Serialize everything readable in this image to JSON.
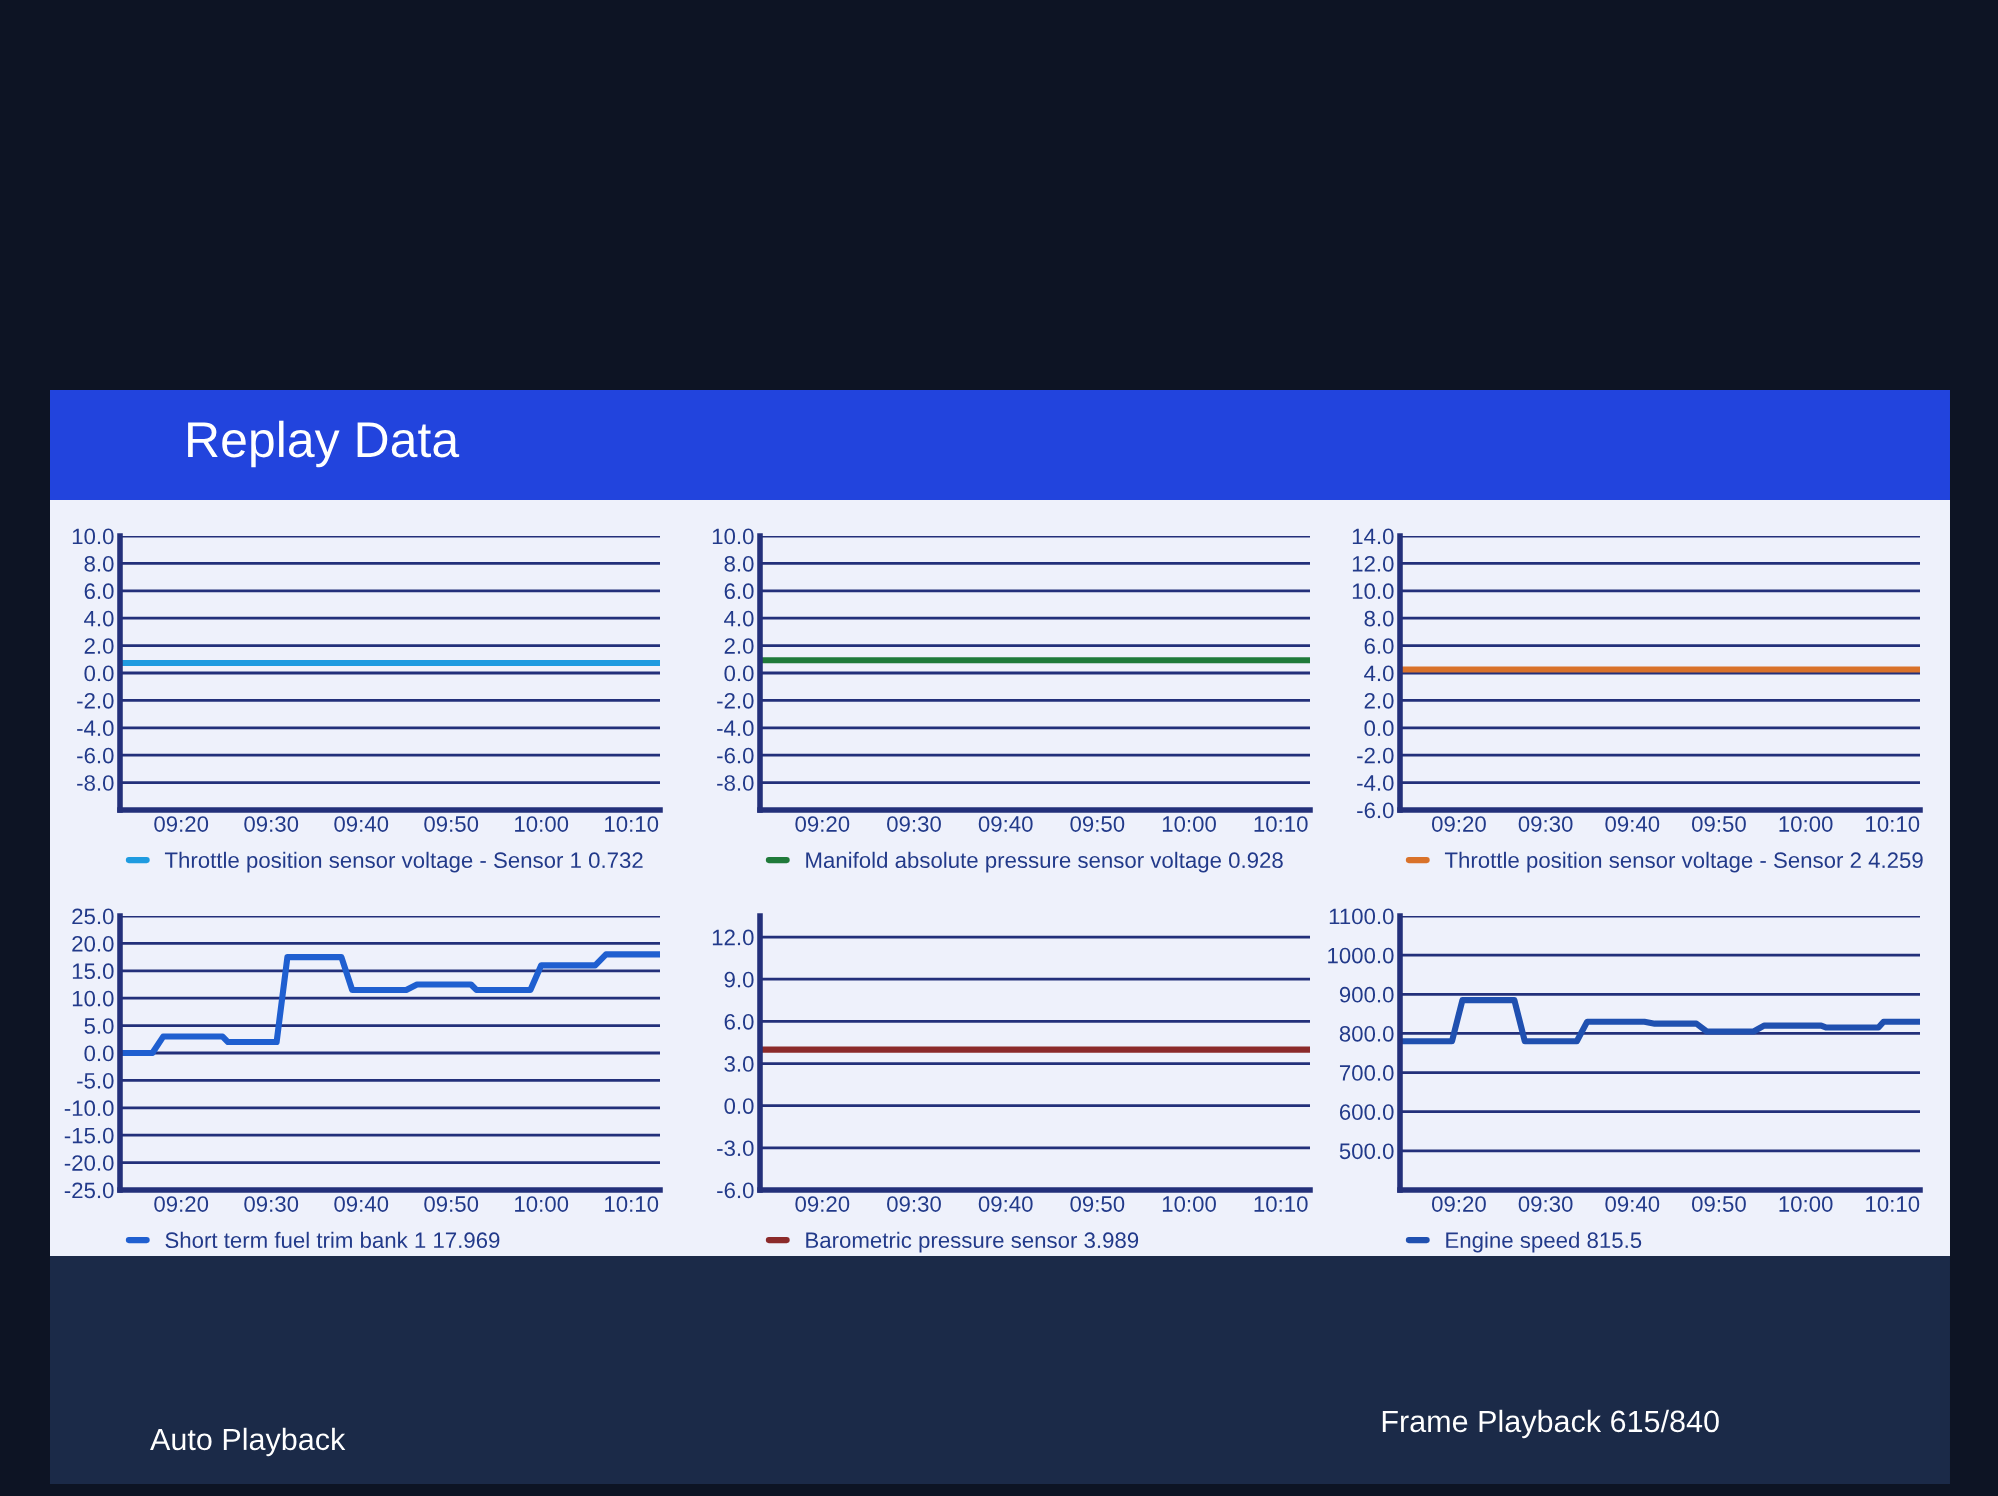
{
  "chart_data": [
    {
      "type": "line",
      "xlim": [
        9.22,
        10.22
      ],
      "xticks": [
        {
          "value": 9.3333,
          "label": "09:20"
        },
        {
          "value": 9.5,
          "label": "09:30"
        },
        {
          "value": 9.6667,
          "label": "09:40"
        },
        {
          "value": 9.8333,
          "label": "09:50"
        },
        {
          "value": 10.0,
          "label": "10:00"
        },
        {
          "value": 10.1667,
          "label": "10:10"
        }
      ],
      "ylim": [
        -10,
        10
      ],
      "yticks": [
        {
          "value": -8,
          "label": "-8.0"
        },
        {
          "value": -6,
          "label": "-6.0"
        },
        {
          "value": -4,
          "label": "-4.0"
        },
        {
          "value": -2,
          "label": "-2.0"
        },
        {
          "value": 0,
          "label": "0.0"
        },
        {
          "value": 2,
          "label": "2.0"
        },
        {
          "value": 4,
          "label": "4.0"
        },
        {
          "value": 6,
          "label": "6.0"
        },
        {
          "value": 8,
          "label": "8.0"
        },
        {
          "value": 10,
          "label": "10.0"
        }
      ],
      "grid": "y",
      "legend": "bottom",
      "series": [
        {
          "name": "Throttle position sensor voltage - Sensor 1 0.732",
          "color": "#1e9be0",
          "x": [
            9.22,
            10.22
          ],
          "values": [
            0.732,
            0.732
          ]
        }
      ]
    },
    {
      "type": "line",
      "xlim": [
        9.22,
        10.22
      ],
      "xticks": [
        {
          "value": 9.3333,
          "label": "09:20"
        },
        {
          "value": 9.5,
          "label": "09:30"
        },
        {
          "value": 9.6667,
          "label": "09:40"
        },
        {
          "value": 9.8333,
          "label": "09:50"
        },
        {
          "value": 10.0,
          "label": "10:00"
        },
        {
          "value": 10.1667,
          "label": "10:10"
        }
      ],
      "ylim": [
        -10,
        10
      ],
      "yticks": [
        {
          "value": -8,
          "label": "-8.0"
        },
        {
          "value": -6,
          "label": "-6.0"
        },
        {
          "value": -4,
          "label": "-4.0"
        },
        {
          "value": -2,
          "label": "-2.0"
        },
        {
          "value": 0,
          "label": "0.0"
        },
        {
          "value": 2,
          "label": "2.0"
        },
        {
          "value": 4,
          "label": "4.0"
        },
        {
          "value": 6,
          "label": "6.0"
        },
        {
          "value": 8,
          "label": "8.0"
        },
        {
          "value": 10,
          "label": "10.0"
        }
      ],
      "grid": "y",
      "legend": "bottom",
      "series": [
        {
          "name": "Manifold absolute pressure sensor voltage 0.928",
          "color": "#1f7a3a",
          "x": [
            9.22,
            10.22
          ],
          "values": [
            0.928,
            0.928
          ]
        }
      ]
    },
    {
      "type": "line",
      "xlim": [
        9.22,
        10.22
      ],
      "xticks": [
        {
          "value": 9.3333,
          "label": "09:20"
        },
        {
          "value": 9.5,
          "label": "09:30"
        },
        {
          "value": 9.6667,
          "label": "09:40"
        },
        {
          "value": 9.8333,
          "label": "09:50"
        },
        {
          "value": 10.0,
          "label": "10:00"
        },
        {
          "value": 10.1667,
          "label": "10:10"
        }
      ],
      "ylim": [
        -6,
        14
      ],
      "yticks": [
        {
          "value": -6,
          "label": "-6.0"
        },
        {
          "value": -4,
          "label": "-4.0"
        },
        {
          "value": -2,
          "label": "-2.0"
        },
        {
          "value": 0,
          "label": "0.0"
        },
        {
          "value": 2,
          "label": "2.0"
        },
        {
          "value": 4,
          "label": "4.0"
        },
        {
          "value": 6,
          "label": "6.0"
        },
        {
          "value": 8,
          "label": "8.0"
        },
        {
          "value": 10,
          "label": "10.0"
        },
        {
          "value": 12,
          "label": "12.0"
        },
        {
          "value": 14,
          "label": "14.0"
        }
      ],
      "grid": "y",
      "legend": "bottom",
      "series": [
        {
          "name": "Throttle position sensor voltage - Sensor 2 4.259",
          "color": "#d9722a",
          "x": [
            9.22,
            10.22
          ],
          "values": [
            4.259,
            4.259
          ]
        }
      ]
    },
    {
      "type": "line",
      "xlim": [
        9.22,
        10.22
      ],
      "xticks": [
        {
          "value": 9.3333,
          "label": "09:20"
        },
        {
          "value": 9.5,
          "label": "09:30"
        },
        {
          "value": 9.6667,
          "label": "09:40"
        },
        {
          "value": 9.8333,
          "label": "09:50"
        },
        {
          "value": 10.0,
          "label": "10:00"
        },
        {
          "value": 10.1667,
          "label": "10:10"
        }
      ],
      "ylim": [
        -25,
        25
      ],
      "yticks": [
        {
          "value": -25,
          "label": "-25.0"
        },
        {
          "value": -20,
          "label": "-20.0"
        },
        {
          "value": -15,
          "label": "-15.0"
        },
        {
          "value": -10,
          "label": "-10.0"
        },
        {
          "value": -5,
          "label": "-5.0"
        },
        {
          "value": 0,
          "label": "0.0"
        },
        {
          "value": 5,
          "label": "5.0"
        },
        {
          "value": 10,
          "label": "10.0"
        },
        {
          "value": 15,
          "label": "15.0"
        },
        {
          "value": 20,
          "label": "20.0"
        },
        {
          "value": 25,
          "label": "25.0"
        }
      ],
      "grid": "y",
      "legend": "bottom",
      "series": [
        {
          "name": "Short term fuel trim bank 1 17.969",
          "color": "#1f5fd0",
          "x": [
            9.22,
            9.28,
            9.3,
            9.41,
            9.42,
            9.51,
            9.53,
            9.63,
            9.65,
            9.75,
            9.77,
            9.87,
            9.88,
            9.98,
            10.0,
            10.1,
            10.12,
            10.22
          ],
          "values": [
            0,
            0,
            3,
            3,
            2,
            2,
            17.5,
            17.5,
            11.5,
            11.5,
            12.5,
            12.5,
            11.5,
            11.5,
            16,
            16,
            18,
            18
          ]
        }
      ]
    },
    {
      "type": "line",
      "xlim": [
        9.22,
        10.22
      ],
      "xticks": [
        {
          "value": 9.3333,
          "label": "09:20"
        },
        {
          "value": 9.5,
          "label": "09:30"
        },
        {
          "value": 9.6667,
          "label": "09:40"
        },
        {
          "value": 9.8333,
          "label": "09:50"
        },
        {
          "value": 10.0,
          "label": "10:00"
        },
        {
          "value": 10.1667,
          "label": "10:10"
        }
      ],
      "ylim": [
        -6,
        13.5
      ],
      "yticks": [
        {
          "value": -6,
          "label": "-6.0"
        },
        {
          "value": -3,
          "label": "-3.0"
        },
        {
          "value": 0,
          "label": "0.0"
        },
        {
          "value": 3,
          "label": "3.0"
        },
        {
          "value": 6,
          "label": "6.0"
        },
        {
          "value": 9,
          "label": "9.0"
        },
        {
          "value": 12,
          "label": "12.0"
        }
      ],
      "grid": "y",
      "legend": "bottom",
      "series": [
        {
          "name": "Barometric pressure sensor 3.989",
          "color": "#8b2a2a",
          "x": [
            9.22,
            10.22
          ],
          "values": [
            3.989,
            3.989
          ]
        }
      ]
    },
    {
      "type": "line",
      "xlim": [
        9.22,
        10.22
      ],
      "xticks": [
        {
          "value": 9.3333,
          "label": "09:20"
        },
        {
          "value": 9.5,
          "label": "09:30"
        },
        {
          "value": 9.6667,
          "label": "09:40"
        },
        {
          "value": 9.8333,
          "label": "09:50"
        },
        {
          "value": 10.0,
          "label": "10:00"
        },
        {
          "value": 10.1667,
          "label": "10:10"
        }
      ],
      "ylim": [
        400,
        1100
      ],
      "yticks": [
        {
          "value": 500,
          "label": "500.0"
        },
        {
          "value": 600,
          "label": "600.0"
        },
        {
          "value": 700,
          "label": "700.0"
        },
        {
          "value": 800,
          "label": "800.0"
        },
        {
          "value": 900,
          "label": "900.0"
        },
        {
          "value": 1000,
          "label": "1000.0"
        },
        {
          "value": 1100,
          "label": "1100.0"
        }
      ],
      "grid": "y",
      "legend": "bottom",
      "series": [
        {
          "name": "Engine speed 815.5",
          "color": "#1f50b0",
          "x": [
            9.22,
            9.32,
            9.34,
            9.44,
            9.46,
            9.56,
            9.58,
            9.69,
            9.71,
            9.79,
            9.81,
            9.9,
            9.92,
            10.03,
            10.04,
            10.14,
            10.15,
            10.22
          ],
          "values": [
            780,
            780,
            885,
            885,
            780,
            780,
            830,
            830,
            825,
            825,
            805,
            805,
            820,
            820,
            815,
            815,
            830,
            830
          ]
        }
      ]
    },
    {
      "type": "other",
      "title": "Replay Data",
      "annotations": [
        "Auto Playback",
        "Frame Playback 615/840"
      ]
    }
  ]
}
